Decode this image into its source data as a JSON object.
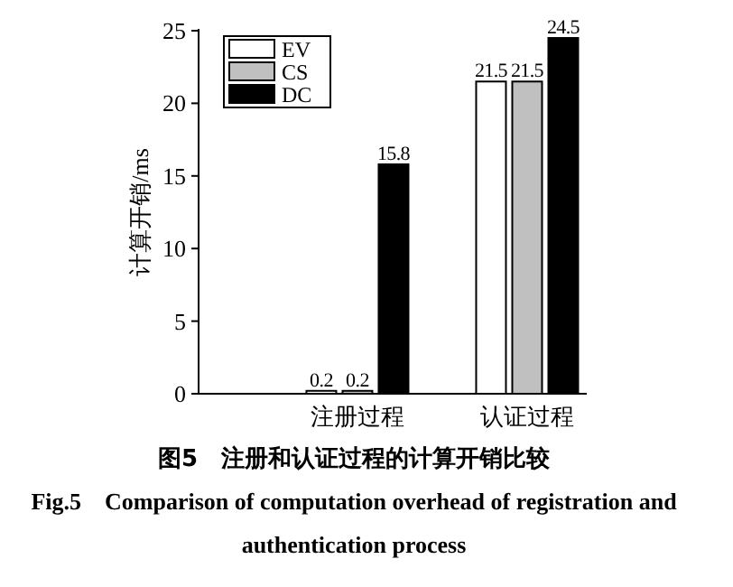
{
  "chart_data": {
    "type": "bar",
    "title": "图5　注册和认证过程的计算开销比较",
    "subtitle": "Fig.5　Comparison of computation overhead of registration and authentication process",
    "ylabel": "计算开销/ms",
    "categories": [
      "注册过程",
      "认证过程"
    ],
    "series": [
      {
        "name": "EV",
        "color": "#ffffff",
        "values": [
          0.2,
          21.5
        ]
      },
      {
        "name": "CS",
        "color": "#c0c0c0",
        "values": [
          0.2,
          21.5
        ]
      },
      {
        "name": "DC",
        "color": "#000000",
        "values": [
          15.8,
          24.5
        ]
      }
    ],
    "ylim": [
      0,
      25
    ],
    "yticks": [
      0,
      5,
      10,
      15,
      20,
      25
    ],
    "legend": "top left",
    "data_labels": true
  }
}
